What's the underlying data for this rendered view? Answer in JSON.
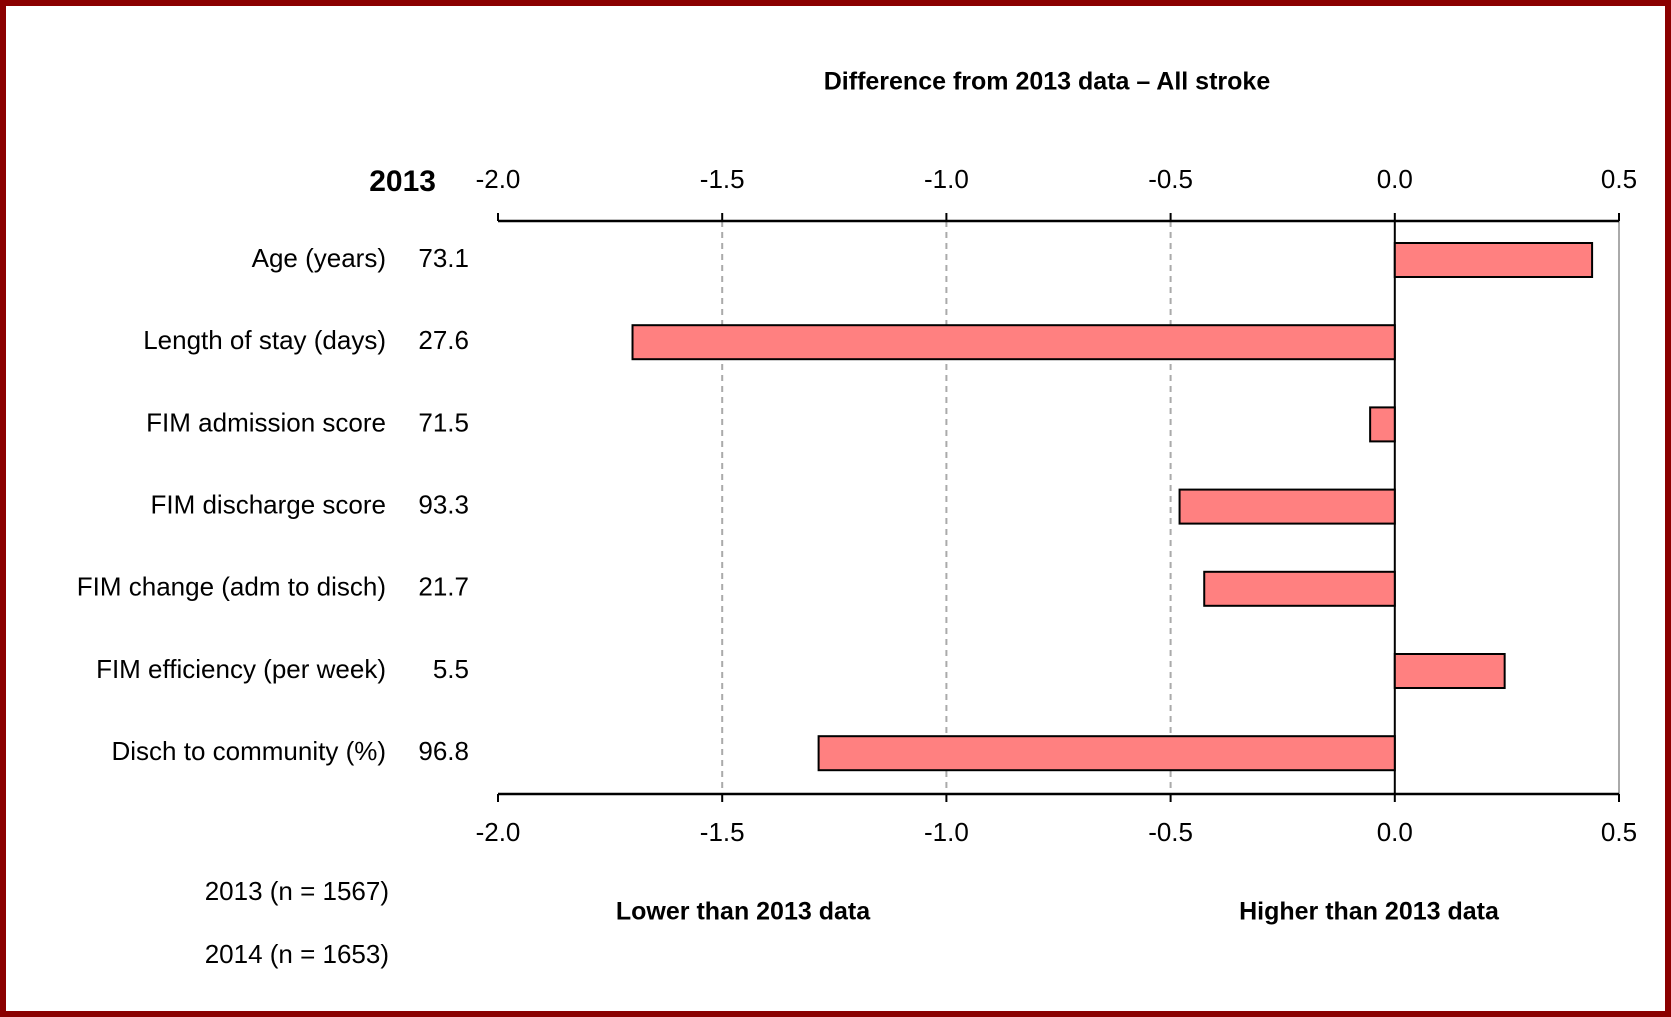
{
  "chart_data": {
    "type": "bar",
    "orientation": "horizontal",
    "title": "Difference from 2013 data – All stroke",
    "value_column_header": "2013",
    "categories": [
      "Age (years)",
      "Length of stay (days)",
      "FIM admission score",
      "FIM discharge score",
      "FIM change (adm to disch)",
      "FIM efficiency (per week)",
      "Disch to community (%)"
    ],
    "value_column": [
      73.1,
      27.6,
      71.5,
      93.3,
      21.7,
      5.5,
      96.8
    ],
    "values": [
      0.44,
      -1.7,
      -0.055,
      -0.48,
      -0.425,
      0.245,
      -1.285
    ],
    "color": "#ff8080",
    "xlim": [
      -2.0,
      0.5
    ],
    "xticks": [
      {
        "value": -2.0,
        "label": "-2.0"
      },
      -1.5,
      {
        "value": -1.0,
        "label": "-1.0"
      },
      -0.5,
      {
        "value": 0.0,
        "label": "0.0"
      },
      0.5
    ],
    "grid": true,
    "annotations": [
      "Lower than 2013 data",
      "Higher than 2013 data"
    ],
    "notes": [
      "2013  (n = 1567)",
      "2014  (n = 1653)"
    ]
  }
}
